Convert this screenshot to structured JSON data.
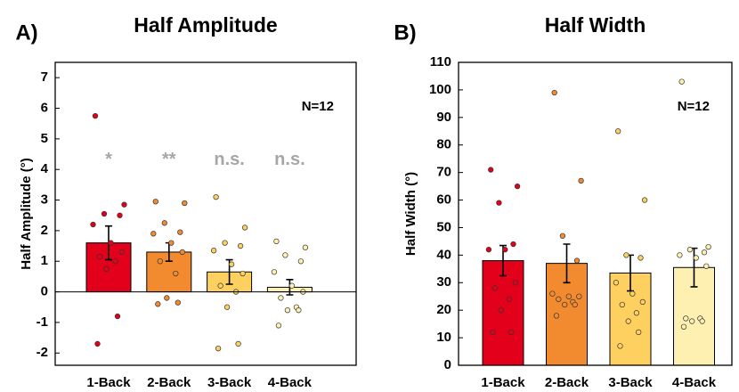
{
  "chart_data": [
    {
      "type": "bar",
      "panel_label": "A)",
      "title": "Half Amplitude",
      "y_label": "Half Amplitude (°)",
      "categories": [
        "1-Back",
        "2-Back",
        "3-Back",
        "4-Back"
      ],
      "colors": [
        "#e3001b",
        "#f28a30",
        "#fdd060",
        "#fdf0b0"
      ],
      "values": [
        1.6,
        1.3,
        0.65,
        0.15
      ],
      "errors": [
        0.55,
        0.3,
        0.4,
        0.25
      ],
      "points": [
        [
          5.75,
          2.85,
          2.55,
          2.5,
          2.2,
          1.6,
          1.3,
          1.15,
          1.0,
          0.75,
          -0.8,
          -1.7
        ],
        [
          2.95,
          2.9,
          2.25,
          1.95,
          1.9,
          1.6,
          1.3,
          1.0,
          0.6,
          -0.2,
          -0.35,
          -0.4
        ],
        [
          3.1,
          2.1,
          1.6,
          1.5,
          1.35,
          0.9,
          0.6,
          0.2,
          0.0,
          -0.5,
          -1.7,
          -1.85
        ],
        [
          1.65,
          1.45,
          1.2,
          1.0,
          0.65,
          0.2,
          0.0,
          -0.2,
          -0.5,
          -0.6,
          -0.6,
          -1.1
        ]
      ],
      "annotations": [
        "*",
        "**",
        "n.s.",
        "n.s."
      ],
      "annotation_y": 4.3,
      "n_label": "N=12",
      "ylim": [
        -2.4,
        7.5
      ],
      "yticks": [
        -2,
        -1,
        0,
        1,
        2,
        3,
        4,
        5,
        6,
        7
      ]
    },
    {
      "type": "bar",
      "panel_label": "B)",
      "title": "Half Width",
      "y_label": "Half Width (°)",
      "categories": [
        "1-Back",
        "2-Back",
        "3-Back",
        "4-Back"
      ],
      "colors": [
        "#e3001b",
        "#f28a30",
        "#fdd060",
        "#fdf0b0"
      ],
      "values": [
        38,
        37,
        33.5,
        35.5
      ],
      "errors": [
        5.5,
        7,
        6.5,
        7
      ],
      "points": [
        [
          71,
          65,
          59,
          44,
          42,
          42,
          30,
          28,
          24,
          20,
          12,
          12
        ],
        [
          99,
          67,
          47,
          38,
          26,
          25,
          25,
          24,
          23,
          22,
          22,
          18
        ],
        [
          85,
          60,
          40,
          39,
          30,
          26,
          23,
          22,
          19,
          16,
          12,
          7
        ],
        [
          103,
          43,
          42,
          41,
          40,
          39,
          36,
          17,
          17,
          16,
          16,
          14
        ]
      ],
      "n_label": "N=12",
      "ylim": [
        0,
        110
      ],
      "yticks": [
        0,
        10,
        20,
        30,
        40,
        50,
        60,
        70,
        80,
        90,
        100,
        110
      ]
    }
  ]
}
